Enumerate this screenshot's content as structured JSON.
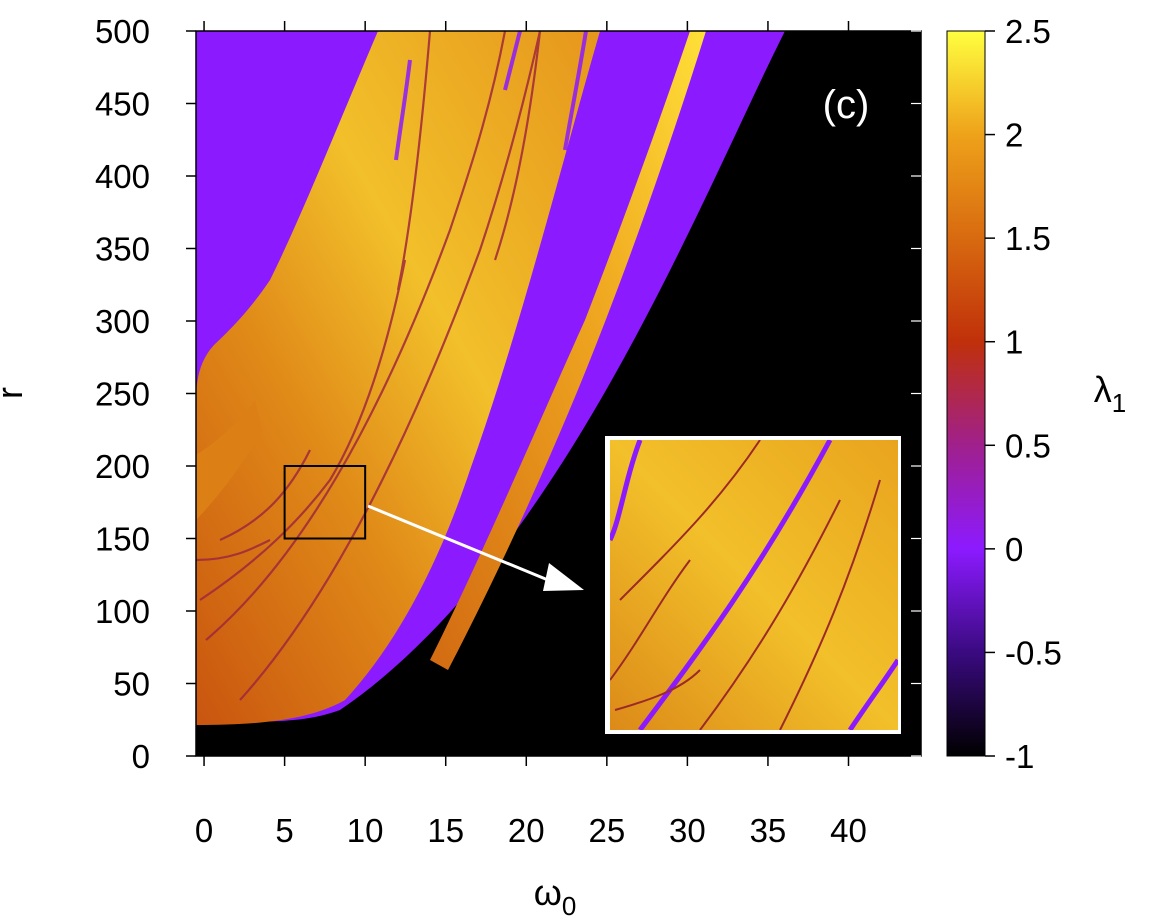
{
  "chart_data": {
    "type": "heatmap",
    "panel_label": "(c)",
    "xlabel_main": "ω",
    "xlabel_sub": "0",
    "ylabel": "r",
    "colorbar_label_main": "λ",
    "colorbar_label_sub": "1",
    "xlim": [
      -0.5,
      44.5
    ],
    "ylim": [
      0,
      500
    ],
    "x_ticks": [
      0,
      5,
      10,
      15,
      20,
      25,
      30,
      35,
      40
    ],
    "x_tick_labels": [
      "0",
      "5",
      "10",
      "15",
      "20",
      "25",
      "30",
      "35",
      "40"
    ],
    "y_ticks": [
      0,
      50,
      100,
      150,
      200,
      250,
      300,
      350,
      400,
      450,
      500
    ],
    "y_tick_labels": [
      "0",
      "50",
      "100",
      "150",
      "200",
      "250",
      "300",
      "350",
      "400",
      "450",
      "500"
    ],
    "colorbar": {
      "range": [
        -1,
        2.5
      ],
      "ticks": [
        -1,
        -0.5,
        0,
        0.5,
        1,
        1.5,
        2,
        2.5
      ],
      "tick_labels": [
        "-1",
        "-0.5",
        "0",
        "0.5",
        "1",
        "1.5",
        "2",
        "2.5"
      ],
      "stops": [
        {
          "value": -1,
          "color": "#000000"
        },
        {
          "value": -0.5,
          "color": "#3a0a80"
        },
        {
          "value": 0,
          "color": "#8c1aff"
        },
        {
          "value": 0.5,
          "color": "#a0208c"
        },
        {
          "value": 1,
          "color": "#c0300a"
        },
        {
          "value": 1.5,
          "color": "#d86a10"
        },
        {
          "value": 2,
          "color": "#eea21a"
        },
        {
          "value": 2.5,
          "color": "#ffff40"
        }
      ]
    },
    "regions": [
      {
        "name": "lambda-negative (black)",
        "lambda": -1,
        "color": "#000000"
      },
      {
        "name": "lambda-zero (purple)",
        "lambda": 0,
        "color": "#8c1aff"
      },
      {
        "name": "chaotic-main-band",
        "lambda": 2,
        "color": "#e8961a"
      },
      {
        "name": "chaotic-thin-band",
        "lambda": 2.2,
        "color": "#f0b020"
      }
    ],
    "zoom_box": {
      "x": [
        5,
        10
      ],
      "y": [
        150,
        200
      ]
    },
    "colors": {
      "black": "#000000",
      "purple": "#8c1aff",
      "orange": "#e8961a",
      "yellow": "#ffe030",
      "dark_red": "#a8280a"
    }
  }
}
